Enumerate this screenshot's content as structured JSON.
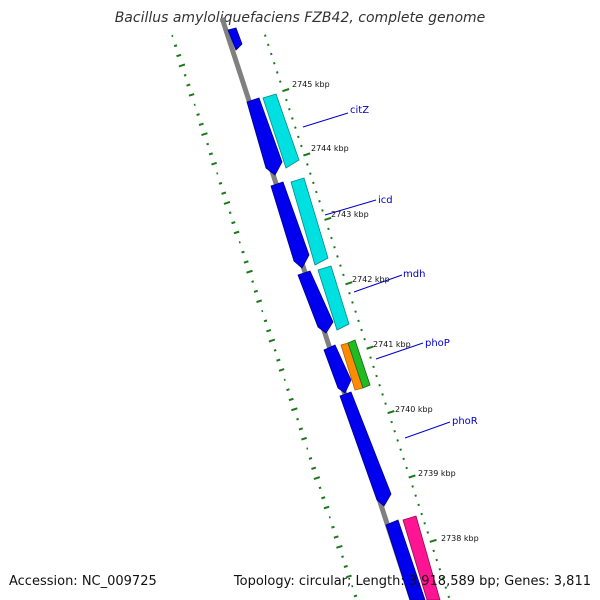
{
  "title": "Bacillus amyloliquefaciens FZB42, complete genome",
  "accession": "Accession: NC_009725",
  "summary": "Topology: circular; Length: 3,918,589 bp; Genes: 3,811",
  "colors": {
    "backbone": "#808080",
    "gc_dots": "#1a7a1a",
    "forward_gene": "#0000ee",
    "citz_icd_mdh": "#00e0e0",
    "phop_orange": "#ff8c00",
    "phop_green": "#22bb22",
    "pink_gene": "#ff1493",
    "label": "#0000cc"
  },
  "ticks": [
    {
      "label": "2745 kbp"
    },
    {
      "label": "2744 kbp"
    },
    {
      "label": "2743 kbp"
    },
    {
      "label": "2742 kbp"
    },
    {
      "label": "2741 kbp"
    },
    {
      "label": "2740 kbp"
    },
    {
      "label": "2739 kbp"
    },
    {
      "label": "2738 kbp"
    }
  ],
  "genes": [
    {
      "label": "citZ"
    },
    {
      "label": "icd"
    },
    {
      "label": "mdh"
    },
    {
      "label": "phoP"
    },
    {
      "label": "phoR"
    }
  ]
}
